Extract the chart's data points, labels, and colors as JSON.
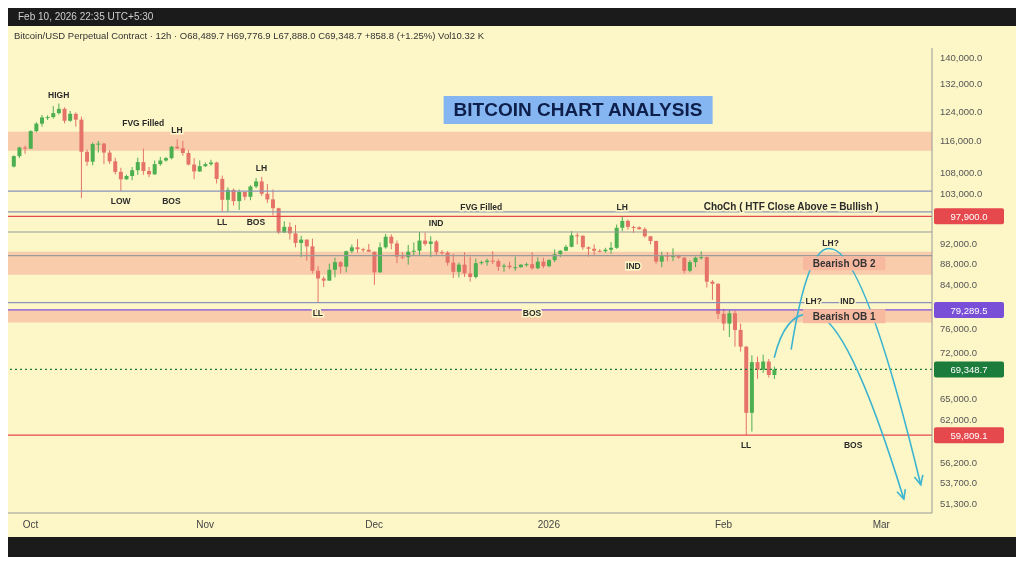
{
  "chart_data": {
    "type": "candlestick",
    "title": "BITCOIN CHART ANALYSIS",
    "subtitle": "Bitcoin/USD Perpetual Contract · 12h · O68,489.7 H69,776.9 L67,888.0 C69,348.7 +858.8 (+1.25%) Vol10.32 K",
    "x": [
      "2025-09-28",
      "2025-09-29",
      "2025-09-30",
      "2025-10-01",
      "2025-10-02",
      "2025-10-03",
      "2025-10-04",
      "2025-10-05",
      "2025-10-06",
      "2025-10-07",
      "2025-10-08",
      "2025-10-09",
      "2025-10-10",
      "2025-10-11",
      "2025-10-12",
      "2025-10-13",
      "2025-10-14",
      "2025-10-15",
      "2025-10-16",
      "2025-10-17",
      "2025-10-18",
      "2025-10-19",
      "2025-10-20",
      "2025-10-21",
      "2025-10-22",
      "2025-10-23",
      "2025-10-24",
      "2025-10-25",
      "2025-10-26",
      "2025-10-27",
      "2025-10-28",
      "2025-10-29",
      "2025-10-30",
      "2025-10-31",
      "2025-11-01",
      "2025-11-02",
      "2025-11-03",
      "2025-11-04",
      "2025-11-05",
      "2025-11-06",
      "2025-11-07",
      "2025-11-08",
      "2025-11-09",
      "2025-11-10",
      "2025-11-11",
      "2025-11-12",
      "2025-11-13",
      "2025-11-14",
      "2025-11-15",
      "2025-11-16",
      "2025-11-17",
      "2025-11-18",
      "2025-11-19",
      "2025-11-20",
      "2025-11-21",
      "2025-11-22",
      "2025-11-23",
      "2025-11-24",
      "2025-11-25",
      "2025-11-26",
      "2025-11-27",
      "2025-11-28",
      "2025-11-29",
      "2025-11-30",
      "2025-12-01",
      "2025-12-02",
      "2025-12-03",
      "2025-12-04",
      "2025-12-05",
      "2025-12-06",
      "2025-12-07",
      "2025-12-08",
      "2025-12-09",
      "2025-12-10",
      "2025-12-11",
      "2025-12-12",
      "2025-12-13",
      "2025-12-14",
      "2025-12-15",
      "2025-12-16",
      "2025-12-17",
      "2025-12-18",
      "2025-12-19",
      "2025-12-20",
      "2025-12-21",
      "2025-12-22",
      "2025-12-23",
      "2025-12-24",
      "2025-12-25",
      "2025-12-26",
      "2025-12-27",
      "2025-12-28",
      "2025-12-29",
      "2025-12-30",
      "2025-12-31",
      "2026-01-01",
      "2026-01-02",
      "2026-01-03",
      "2026-01-04",
      "2026-01-05",
      "2026-01-06",
      "2026-01-07",
      "2026-01-08",
      "2026-01-09",
      "2026-01-10",
      "2026-01-11",
      "2026-01-12",
      "2026-01-13",
      "2026-01-14",
      "2026-01-15",
      "2026-01-16",
      "2026-01-17",
      "2026-01-18",
      "2026-01-19",
      "2026-01-20",
      "2026-01-21",
      "2026-01-22",
      "2026-01-23",
      "2026-01-24",
      "2026-01-25",
      "2026-01-26",
      "2026-01-27",
      "2026-01-28",
      "2026-01-29",
      "2026-01-30",
      "2026-01-31",
      "2026-02-01",
      "2026-02-02",
      "2026-02-03",
      "2026-02-04",
      "2026-02-05",
      "2026-02-06",
      "2026-02-07",
      "2026-02-08",
      "2026-02-09",
      "2026-02-10"
    ],
    "ohlc": [
      [
        109500,
        112300,
        109300,
        112100
      ],
      [
        112100,
        114500,
        111600,
        114300
      ],
      [
        114300,
        114800,
        112700,
        114000
      ],
      [
        114000,
        118800,
        113900,
        118600
      ],
      [
        118600,
        121000,
        118300,
        120600
      ],
      [
        120600,
        123000,
        119800,
        122300
      ],
      [
        122300,
        122900,
        121600,
        122400
      ],
      [
        122400,
        125500,
        122000,
        123500
      ],
      [
        123500,
        126200,
        123100,
        124700
      ],
      [
        124700,
        125100,
        120700,
        121400
      ],
      [
        121400,
        124100,
        121100,
        123300
      ],
      [
        123300,
        123700,
        119800,
        121700
      ],
      [
        121700,
        122500,
        102000,
        113200
      ],
      [
        113200,
        113800,
        109700,
        110700
      ],
      [
        110700,
        115600,
        109800,
        115200
      ],
      [
        115200,
        116000,
        113000,
        115300
      ],
      [
        115300,
        115500,
        110100,
        113000
      ],
      [
        113000,
        113600,
        110200,
        110800
      ],
      [
        110800,
        111700,
        107600,
        108200
      ],
      [
        108200,
        109200,
        103600,
        106400
      ],
      [
        106400,
        107500,
        106300,
        107200
      ],
      [
        107200,
        109400,
        106200,
        108600
      ],
      [
        108600,
        111700,
        107500,
        110600
      ],
      [
        110600,
        114000,
        107500,
        108400
      ],
      [
        108400,
        109400,
        106900,
        107600
      ],
      [
        107600,
        111000,
        107500,
        110100
      ],
      [
        110100,
        111900,
        109700,
        111000
      ],
      [
        111000,
        111900,
        110700,
        111600
      ],
      [
        111600,
        114700,
        111300,
        114500
      ],
      [
        114500,
        116400,
        113900,
        114100
      ],
      [
        114100,
        116000,
        112200,
        112900
      ],
      [
        112900,
        113600,
        109800,
        110000
      ],
      [
        110000,
        111600,
        106400,
        108300
      ],
      [
        108300,
        111000,
        108200,
        109600
      ],
      [
        109600,
        110500,
        109400,
        110100
      ],
      [
        110100,
        111200,
        109700,
        110500
      ],
      [
        110500,
        110700,
        105400,
        106500
      ],
      [
        106500,
        107300,
        98900,
        101600
      ],
      [
        101600,
        104500,
        98900,
        103900
      ],
      [
        103900,
        104200,
        100300,
        101300
      ],
      [
        101300,
        104000,
        99300,
        103400
      ],
      [
        103400,
        103500,
        101500,
        102300
      ],
      [
        102300,
        105000,
        101500,
        104700
      ],
      [
        104700,
        106700,
        104300,
        105900
      ],
      [
        105900,
        107000,
        102500,
        103000
      ],
      [
        103000,
        105300,
        100900,
        101700
      ],
      [
        101700,
        104000,
        98100,
        99700
      ],
      [
        99700,
        99800,
        94100,
        94400
      ],
      [
        94400,
        96800,
        94300,
        95600
      ],
      [
        95600,
        96600,
        92900,
        94200
      ],
      [
        94200,
        96000,
        91300,
        92200
      ],
      [
        92200,
        93700,
        89300,
        92900
      ],
      [
        92900,
        92900,
        88600,
        91500
      ],
      [
        91500,
        93100,
        86100,
        86600
      ],
      [
        86600,
        87500,
        80600,
        85100
      ],
      [
        85100,
        85500,
        83500,
        84700
      ],
      [
        84700,
        88000,
        84700,
        86800
      ],
      [
        86800,
        89200,
        85300,
        88300
      ],
      [
        88300,
        88500,
        86100,
        87400
      ],
      [
        87400,
        90600,
        86300,
        90500
      ],
      [
        90500,
        91900,
        90100,
        91300
      ],
      [
        91300,
        93000,
        90200,
        90900
      ],
      [
        90900,
        91200,
        90300,
        90800
      ],
      [
        90800,
        92000,
        90400,
        90400
      ],
      [
        90400,
        90400,
        83900,
        86300
      ],
      [
        86300,
        92300,
        86200,
        91300
      ],
      [
        91300,
        94100,
        91000,
        93500
      ],
      [
        93500,
        94000,
        90900,
        92100
      ],
      [
        92100,
        92700,
        88100,
        89400
      ],
      [
        89400,
        90300,
        88900,
        89300
      ],
      [
        89300,
        91800,
        87800,
        90400
      ],
      [
        90400,
        92300,
        89600,
        90600
      ],
      [
        90600,
        94500,
        89500,
        92700
      ],
      [
        92700,
        94400,
        91600,
        92000
      ],
      [
        92000,
        93600,
        89300,
        92500
      ],
      [
        92500,
        92800,
        89500,
        90300
      ],
      [
        90300,
        90700,
        89800,
        90200
      ],
      [
        90200,
        90500,
        87600,
        88200
      ],
      [
        88200,
        90000,
        85200,
        86400
      ],
      [
        86400,
        88200,
        85300,
        87800
      ],
      [
        87800,
        90300,
        85400,
        86100
      ],
      [
        86100,
        89400,
        84500,
        85400
      ],
      [
        85400,
        89000,
        85100,
        88100
      ],
      [
        88100,
        88600,
        87800,
        88300
      ],
      [
        88300,
        89000,
        87600,
        88600
      ],
      [
        88600,
        90500,
        87900,
        88500
      ],
      [
        88500,
        88900,
        86600,
        87400
      ],
      [
        87400,
        88000,
        86400,
        87600
      ],
      [
        87600,
        88400,
        86900,
        87300
      ],
      [
        87300,
        89400,
        86600,
        87300
      ],
      [
        87300,
        87900,
        87200,
        87800
      ],
      [
        87800,
        88200,
        87400,
        87900
      ],
      [
        87900,
        90300,
        86800,
        87100
      ],
      [
        87100,
        89300,
        86900,
        88400
      ],
      [
        88400,
        89200,
        87100,
        87500
      ],
      [
        87500,
        88900,
        87300,
        88700
      ],
      [
        88700,
        90900,
        88300,
        89900
      ],
      [
        89900,
        90700,
        89300,
        90600
      ],
      [
        90600,
        91800,
        90500,
        91400
      ],
      [
        91400,
        94700,
        91300,
        93800
      ],
      [
        93800,
        94300,
        91900,
        93700
      ],
      [
        93700,
        93800,
        90800,
        91300
      ],
      [
        91300,
        91500,
        89400,
        91000
      ],
      [
        91000,
        91900,
        89600,
        90600
      ],
      [
        90600,
        90900,
        90300,
        90500
      ],
      [
        90500,
        91200,
        90200,
        90800
      ],
      [
        90800,
        92400,
        90000,
        91200
      ],
      [
        91200,
        96100,
        91000,
        95400
      ],
      [
        95400,
        97900,
        94700,
        96900
      ],
      [
        96900,
        97200,
        95000,
        95600
      ],
      [
        95600,
        95800,
        94300,
        95500
      ],
      [
        95500,
        95700,
        95000,
        95100
      ],
      [
        95100,
        95500,
        93300,
        93600
      ],
      [
        93600,
        93600,
        91900,
        92600
      ],
      [
        92600,
        92700,
        88000,
        88400
      ],
      [
        88400,
        90400,
        87300,
        89600
      ],
      [
        89600,
        90300,
        88500,
        89500
      ],
      [
        89500,
        91100,
        88500,
        89500
      ],
      [
        89500,
        89800,
        89000,
        89200
      ],
      [
        89200,
        89300,
        86100,
        86600
      ],
      [
        86600,
        88700,
        86300,
        88300
      ],
      [
        88300,
        89400,
        87300,
        89200
      ],
      [
        89200,
        90500,
        88800,
        89300
      ],
      [
        89300,
        89400,
        83400,
        84500
      ],
      [
        84500,
        84800,
        81100,
        84100
      ],
      [
        84100,
        84200,
        77700,
        78600
      ],
      [
        78600,
        79500,
        75700,
        76900
      ],
      [
        76900,
        79300,
        74600,
        78700
      ],
      [
        78700,
        79200,
        73000,
        75800
      ],
      [
        75800,
        76900,
        72200,
        73000
      ],
      [
        73000,
        73100,
        59809.1,
        62900
      ],
      [
        62900,
        71600,
        60300,
        70500
      ],
      [
        70500,
        71400,
        67900,
        69300
      ],
      [
        69300,
        71700,
        68800,
        70600
      ],
      [
        70600,
        71000,
        68100,
        68500
      ],
      [
        68489.7,
        69776.9,
        67888.0,
        69348.7
      ]
    ],
    "xlim": [
      "2025-09-27",
      "2026-03-10"
    ],
    "xticks": [
      {
        "value": "2025-10-01",
        "label": "Oct"
      },
      {
        "value": "2025-11-01",
        "label": "Nov"
      },
      {
        "value": "2025-12-01",
        "label": "Dec"
      },
      {
        "value": "2026-01-01",
        "label": "2026"
      },
      {
        "value": "2026-02-01",
        "label": "Feb"
      },
      {
        "value": "2026-03-01",
        "label": "Mar"
      }
    ],
    "log": "y",
    "ylim": [
      50200,
      143000
    ],
    "yticks": [
      {
        "value": 140000,
        "label": "140,000.0"
      },
      {
        "value": 132000,
        "label": "132,000.0"
      },
      {
        "value": 124000,
        "label": "124,000.0"
      },
      {
        "value": 116000,
        "label": "116,000.0"
      },
      {
        "value": 108000,
        "label": "108,000.0"
      },
      {
        "value": 103000,
        "label": "103,000.0"
      },
      {
        "value": 92000,
        "label": "92,000.0"
      },
      {
        "value": 88000,
        "label": "88,000.0"
      },
      {
        "value": 84000,
        "label": "84,000.0"
      },
      {
        "value": 76000,
        "label": "76,000.0"
      },
      {
        "value": 72000,
        "label": "72,000.0"
      },
      {
        "value": 65000,
        "label": "65,000.0"
      },
      {
        "value": 62000,
        "label": "62,000.0"
      },
      {
        "value": 56200,
        "label": "56,200.0"
      },
      {
        "value": 53700,
        "label": "53,700.0"
      },
      {
        "value": 51300,
        "label": "51,300.0"
      }
    ],
    "ref_lines": [
      {
        "axis": "y",
        "value": 97900,
        "label": "97,900.0",
        "color": "#e5484d"
      },
      {
        "axis": "y",
        "value": 79289.5,
        "label": "79,289.5",
        "color": "#7a4fd8"
      },
      {
        "axis": "y",
        "value": 69348.7,
        "label": "69,348.7",
        "color": "#1c7c3c",
        "line_style": "dotted"
      },
      {
        "axis": "y",
        "value": 59809.1,
        "label": "59,809.1",
        "color": "#e5484d"
      },
      {
        "axis": "y",
        "value": 103600,
        "color": "#8a93b8"
      },
      {
        "axis": "y",
        "value": 98900,
        "color": "#8a93b8"
      },
      {
        "axis": "y",
        "value": 94500,
        "color": "#9a9a9a"
      },
      {
        "axis": "y",
        "value": 89600,
        "color": "#9a9a9a"
      },
      {
        "axis": "y",
        "value": 80600,
        "color": "#8a93b8"
      }
    ],
    "bands": [
      {
        "axis": "y",
        "from": 113500,
        "to": 118400,
        "color": "#f7b9a0"
      },
      {
        "axis": "y",
        "from": 85830,
        "to": 90370,
        "label": "Bearish OB 2",
        "color": "#f7b9a0"
      },
      {
        "axis": "y",
        "from": 77100,
        "to": 79289.5,
        "label": "Bearish OB 1",
        "color": "#f7b9a0"
      }
    ],
    "annotations": [
      "Feb 10, 2026 22:35 UTC+5:30",
      {
        "text": "HIGH",
        "x": "2025-10-06",
        "y": 126200
      },
      {
        "text": "FVG Filled",
        "x": "2025-10-21",
        "y": 118400
      },
      {
        "text": "LH",
        "x": "2025-10-27",
        "y": 116400
      },
      {
        "text": "LOW",
        "x": "2025-10-17",
        "y": 103600
      },
      {
        "text": "BOS",
        "x": "2025-10-26",
        "y": 103600
      },
      {
        "text": "LL",
        "x": "2025-11-04",
        "y": 98900
      },
      {
        "text": "BOS",
        "x": "2025-11-10",
        "y": 98900
      },
      {
        "text": "LH",
        "x": "2025-11-11",
        "y": 107000
      },
      {
        "text": "LL",
        "x": "2025-11-21",
        "y": 80600
      },
      {
        "text": "IND",
        "x": "2025-12-12",
        "y": 94500
      },
      {
        "text": "FVG Filled",
        "x": "2025-12-20",
        "y": 97900
      },
      {
        "text": "BOS",
        "x": "2025-12-29",
        "y": 80600
      },
      {
        "text": "LH",
        "x": "2026-01-14",
        "y": 97900
      },
      {
        "text": "IND",
        "x": "2026-01-16",
        "y": 89600
      },
      {
        "text": "ChoCh ( HTF Close Above = Bullish )",
        "x": "2026-02-13",
        "y": 97900
      },
      {
        "text": "LH?",
        "x": "2026-02-20",
        "y": 90370
      },
      {
        "text": "LH?",
        "x": "2026-02-17",
        "y": 79289.5
      },
      {
        "text": "IND",
        "x": "2026-02-23",
        "y": 79289.5
      },
      {
        "text": "LL",
        "x": "2026-02-05",
        "y": 59809.1
      },
      {
        "text": "BOS",
        "x": "2026-02-24",
        "y": 59809.1
      }
    ]
  }
}
